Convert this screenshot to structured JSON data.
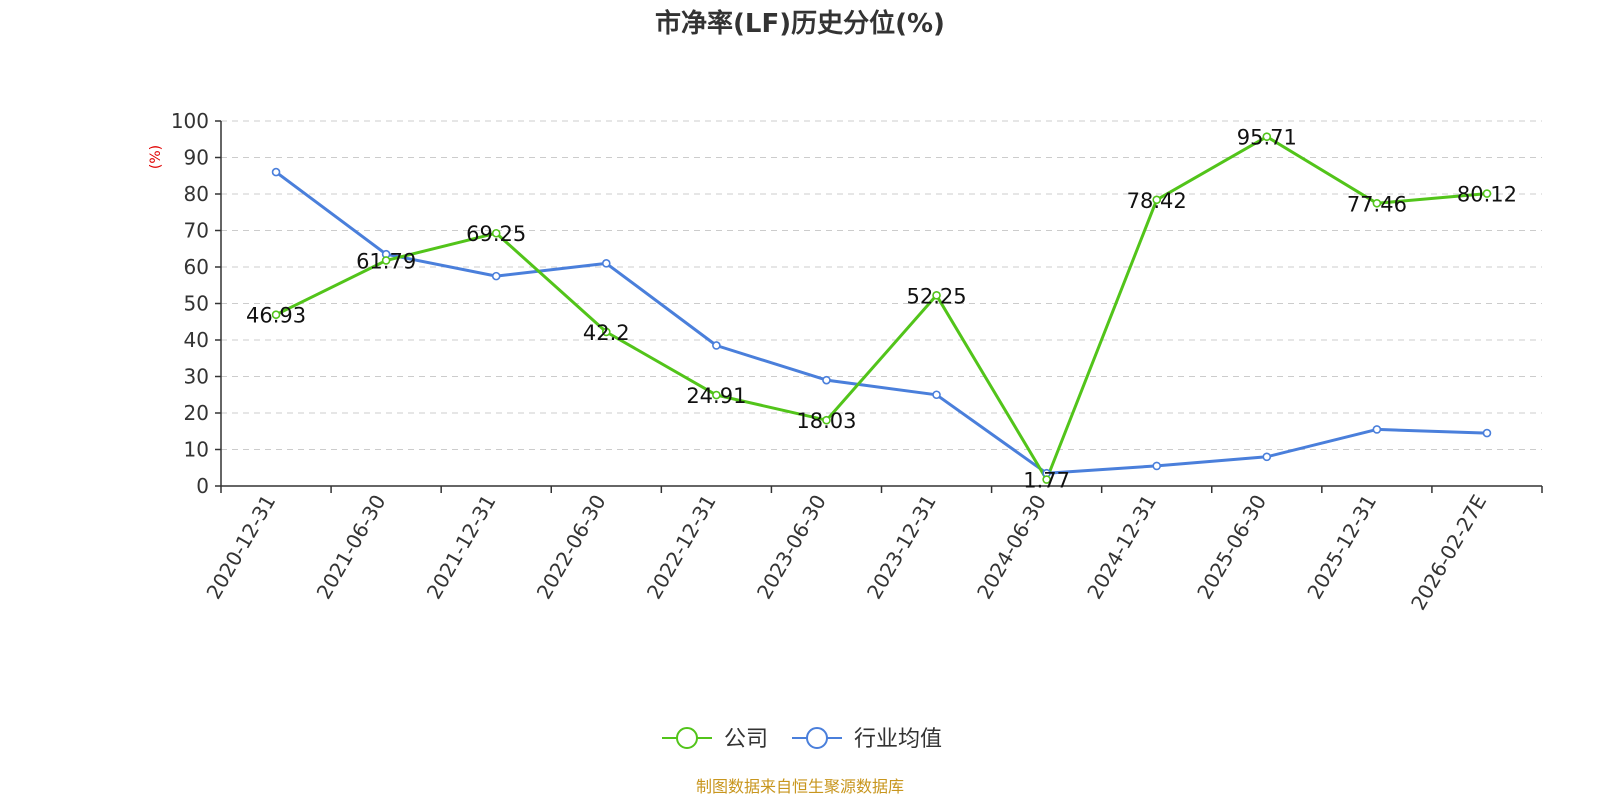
{
  "chart_data": {
    "type": "line",
    "title": "市净率(LF)历史分位(%)",
    "ylabel": "(%)",
    "ylim": [
      0,
      100
    ],
    "yticks": [
      0,
      10,
      20,
      30,
      40,
      50,
      60,
      70,
      80,
      90,
      100
    ],
    "grid": "horizontal-dashed",
    "legend_position": "bottom-center",
    "categories": [
      "2020-12-31",
      "2021-06-30",
      "2021-12-31",
      "2022-06-30",
      "2022-12-31",
      "2023-06-30",
      "2023-12-31",
      "2024-06-30",
      "2024-12-31",
      "2025-06-30",
      "2025-12-31",
      "2026-02-27E"
    ],
    "series": [
      {
        "name": "公司",
        "color": "#52c41a",
        "values": [
          46.93,
          61.79,
          69.25,
          42.2,
          24.91,
          18.03,
          52.25,
          1.77,
          78.42,
          95.71,
          77.46,
          80.12
        ],
        "labels": [
          "46.93",
          "61.79",
          "69.25",
          "42.2",
          "24.91",
          "18.03",
          "52.25",
          "1.77",
          "78.42",
          "95.71",
          "77.46",
          "80.12"
        ]
      },
      {
        "name": "行业均值",
        "color": "#4a7fdb",
        "values": [
          86,
          63.5,
          57.5,
          61,
          38.5,
          29,
          25,
          3.5,
          5.5,
          8,
          15.5,
          14.5
        ]
      }
    ],
    "source": "制图数据来自恒生聚源数据库"
  }
}
